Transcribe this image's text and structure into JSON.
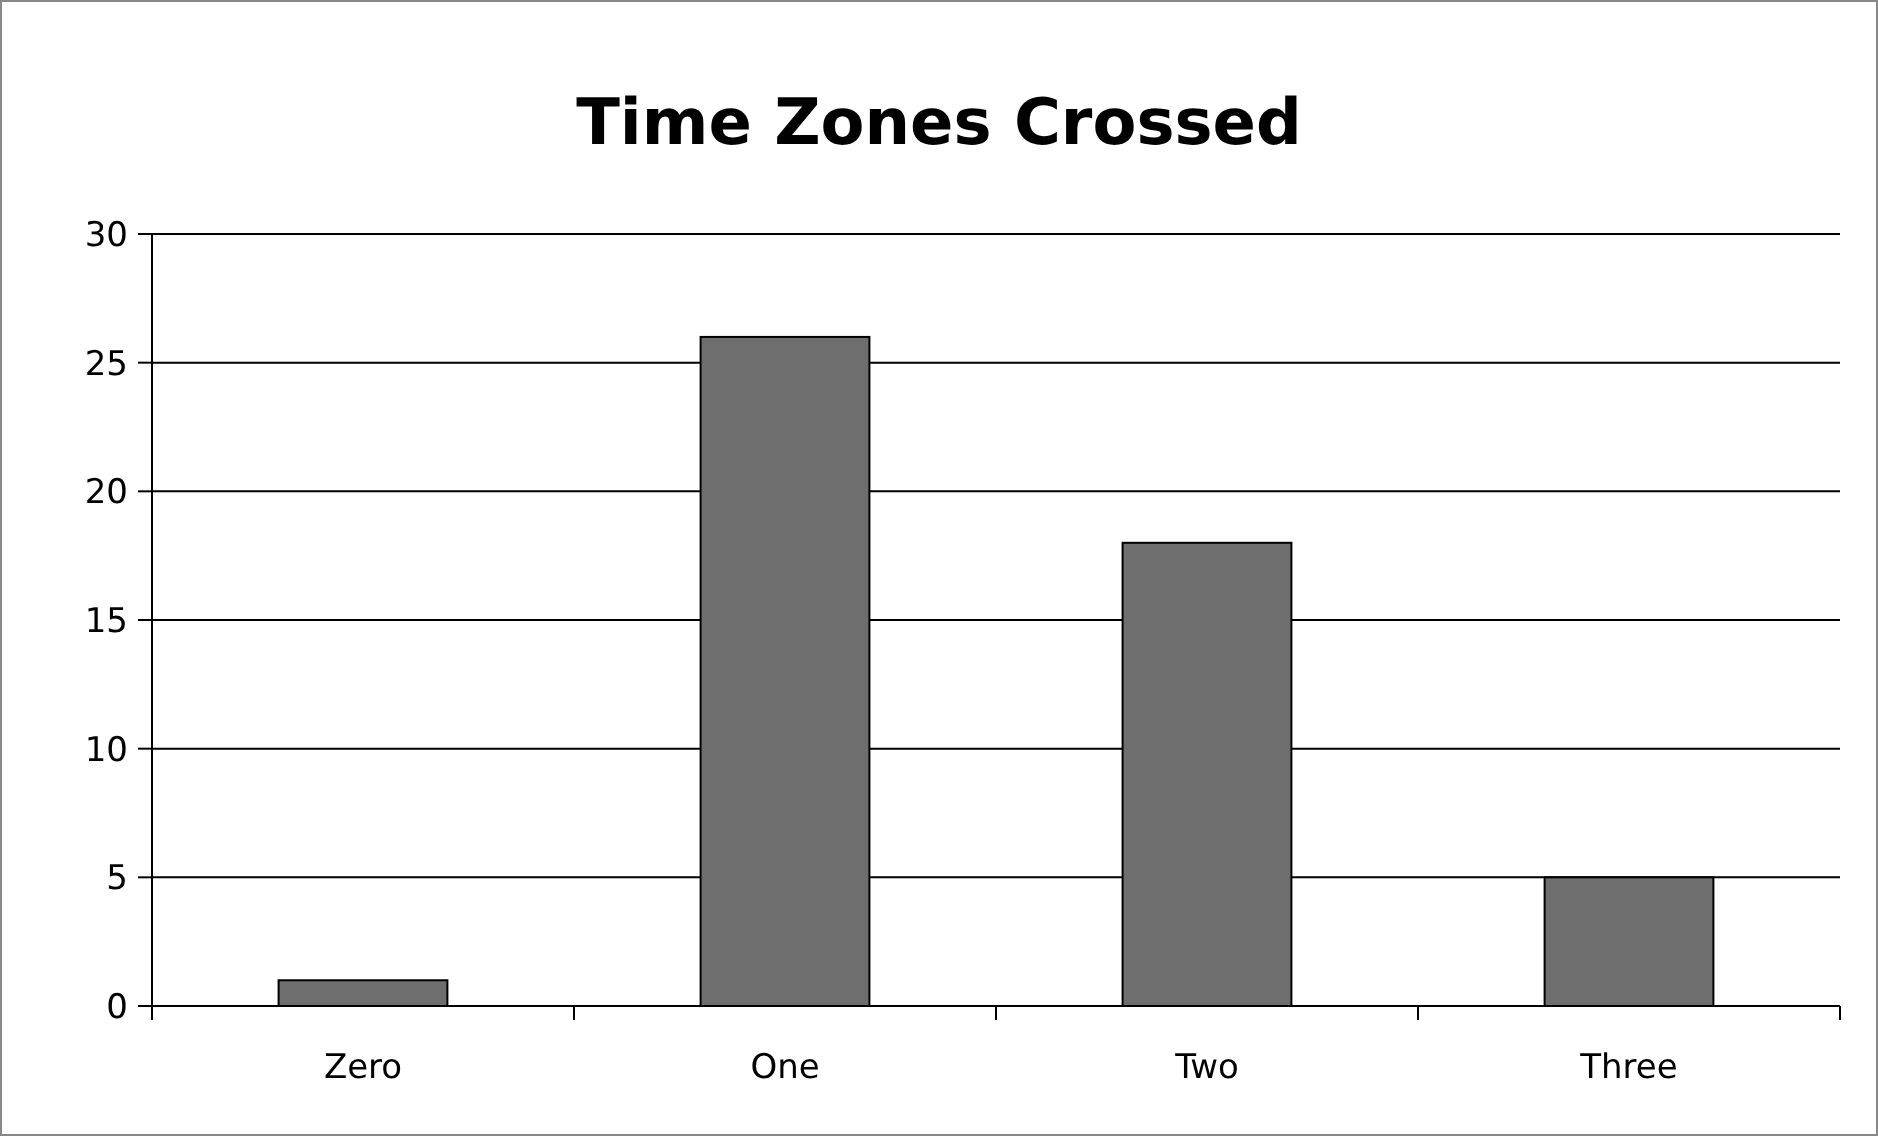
{
  "chart_data": {
    "type": "bar",
    "title": "Time Zones Crossed",
    "categories": [
      "Zero",
      "One",
      "Two",
      "Three"
    ],
    "values": [
      1,
      26,
      18,
      5
    ],
    "color": "#6e6e6e",
    "ylim": [
      0,
      30
    ],
    "yticks": [
      0,
      5,
      10,
      15,
      20,
      25,
      30
    ],
    "grid": "y"
  }
}
